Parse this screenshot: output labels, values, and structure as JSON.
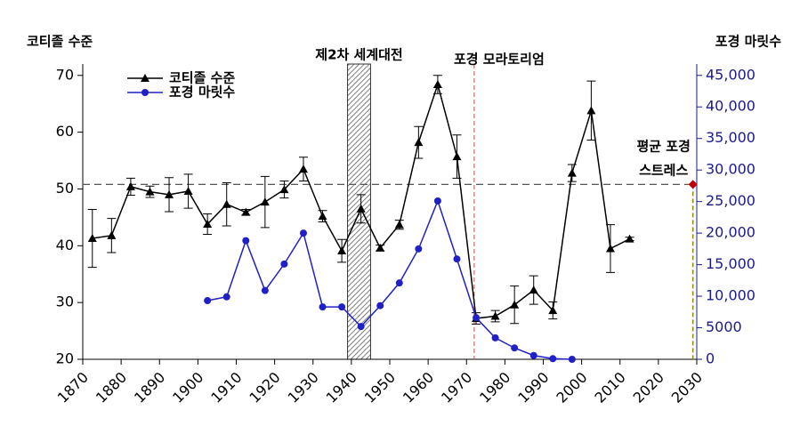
{
  "chart_data": {
    "type": "line",
    "y_label": "코티졸 수준",
    "y2_label": "포경 마릿수",
    "xlim": [
      1870,
      2030
    ],
    "xticks": [
      1870,
      1880,
      1890,
      1900,
      1910,
      1920,
      1930,
      1940,
      1950,
      1960,
      1970,
      1980,
      1990,
      2000,
      2010,
      2020,
      2030
    ],
    "ylim": [
      20,
      72
    ],
    "yticks": [
      20,
      30,
      40,
      50,
      60,
      70
    ],
    "y2lim": [
      0,
      46800
    ],
    "y2ticks": [
      0,
      5000,
      {
        "value": 10000,
        "label": "10,000"
      },
      {
        "value": 15000,
        "label": "15,000"
      },
      {
        "value": 20000,
        "label": "20,000"
      },
      {
        "value": 25000,
        "label": "25,000"
      },
      {
        "value": 30000,
        "label": "30,000"
      },
      {
        "value": 35000,
        "label": "35,000"
      },
      {
        "value": 40000,
        "label": "40,000"
      },
      {
        "value": 45000,
        "label": "45,000"
      }
    ],
    "legend": "upper left",
    "series": [
      {
        "name": "코티졸 수준",
        "color": "#000000",
        "marker": "triangle",
        "x": [
          1872.5,
          1877.5,
          1882.5,
          1887.5,
          1892.5,
          1897.5,
          1902.5,
          1907.5,
          1912.5,
          1917.5,
          1922.5,
          1927.5,
          1932.5,
          1937.5,
          1942.5,
          1947.5,
          1952.5,
          1957.5,
          1962.5,
          1967.5,
          1972.5,
          1977.5,
          1982.5,
          1987.5,
          1992.5,
          1997.5,
          2002.5,
          2007.5,
          2012.5
        ],
        "values": [
          41.3,
          41.8,
          50.4,
          49.5,
          49.0,
          49.6,
          43.8,
          47.3,
          45.9,
          47.7,
          49.9,
          53.5,
          45.2,
          39.1,
          46.5,
          39.6,
          43.7,
          58.2,
          68.4,
          55.7,
          27.2,
          27.6,
          29.6,
          32.2,
          28.6,
          52.8,
          63.8,
          39.5,
          41.2
        ],
        "errors": [
          5.1,
          3.0,
          1.5,
          1.0,
          3.0,
          3.0,
          1.8,
          3.8,
          0.5,
          4.5,
          1.5,
          2.1,
          1.0,
          2.0,
          2.5,
          0.5,
          0.8,
          2.8,
          1.6,
          3.8,
          1.0,
          1.0,
          3.3,
          2.5,
          1.5,
          1.5,
          5.2,
          4.2,
          0.3
        ]
      },
      {
        "name": "포경 마릿수",
        "color": "#2020c8",
        "marker": "circle",
        "axis": "y2",
        "x": [
          1902.5,
          1907.5,
          1912.5,
          1917.5,
          1922.5,
          1927.5,
          1932.5,
          1937.5,
          1942.5,
          1947.5,
          1952.5,
          1957.5,
          1962.5,
          1967.5,
          1972.5,
          1977.5,
          1982.5,
          1987.5,
          1992.5,
          1997.5
        ],
        "values": [
          9300,
          9900,
          18800,
          10900,
          15100,
          20000,
          8300,
          8300,
          5200,
          8500,
          12100,
          17500,
          25100,
          15900,
          6600,
          3400,
          1800,
          600,
          100,
          0
        ]
      }
    ],
    "span": {
      "label": "제2차 세계대전",
      "x": [
        1939,
        1945
      ]
    },
    "vline": {
      "label": "포경 모라토리엄",
      "x": 1972,
      "color": "#c0504d"
    },
    "hline": {
      "y": 50.8
    },
    "point": {
      "label": [
        "평균 포경",
        "스트레스"
      ],
      "x": 2029,
      "y": 50.8,
      "color": "#c00000",
      "line_color": "#8b8b00"
    }
  }
}
